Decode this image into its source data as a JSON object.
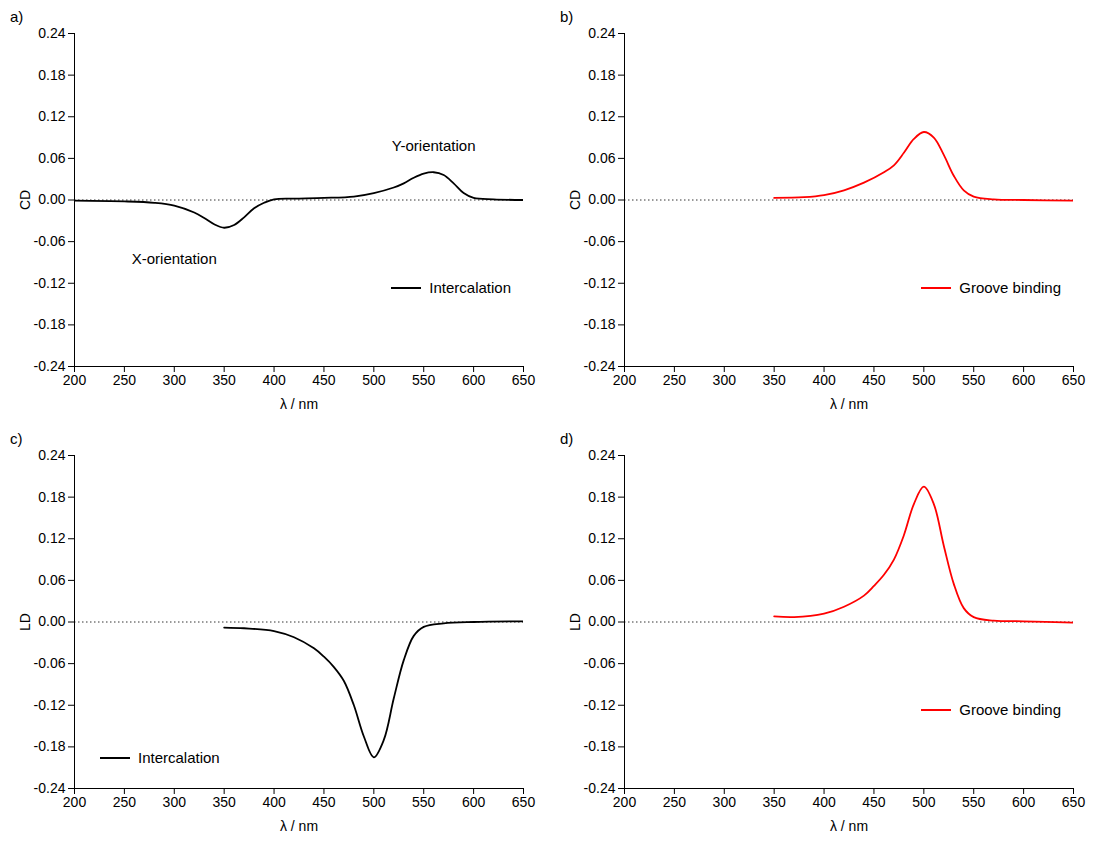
{
  "chart_data": [
    {
      "type": "line",
      "title": "a)",
      "x_label": "λ / nm",
      "y_label": "CD",
      "x": [
        200,
        250,
        280,
        300,
        320,
        330,
        340,
        350,
        360,
        370,
        380,
        390,
        400,
        420,
        450,
        480,
        500,
        520,
        530,
        540,
        550,
        560,
        570,
        580,
        590,
        600,
        620,
        650
      ],
      "series": [
        {
          "name": "Intercalation",
          "color": "#000000",
          "values": [
            -0.001,
            -0.002,
            -0.004,
            -0.008,
            -0.018,
            -0.026,
            -0.035,
            -0.04,
            -0.036,
            -0.025,
            -0.012,
            -0.004,
            0.001,
            0.002,
            0.003,
            0.005,
            0.01,
            0.018,
            0.024,
            0.032,
            0.038,
            0.04,
            0.036,
            0.024,
            0.01,
            0.003,
            0.001,
            0
          ]
        }
      ],
      "annotations": [
        {
          "text": "X-orientation",
          "x": 300,
          "y": -0.085
        },
        {
          "text": "Y-orientation",
          "x": 560,
          "y": 0.078
        }
      ],
      "reference_line": {
        "y": 0,
        "line_style": "dotted"
      },
      "xlim": [
        200,
        650
      ],
      "ylim": [
        -0.24,
        0.24
      ],
      "xticks": [
        200,
        250,
        300,
        350,
        400,
        450,
        500,
        550,
        600,
        650
      ],
      "yticks": [
        -0.24,
        -0.18,
        -0.12,
        -0.06,
        {
          "value": 0,
          "label": "0.00"
        },
        0.06,
        0.12,
        0.18,
        0.24
      ],
      "grid": false,
      "legend": "lower right"
    },
    {
      "type": "line",
      "title": "b)",
      "x_label": "λ / nm",
      "y_label": "CD",
      "x": [
        350,
        380,
        400,
        420,
        440,
        460,
        470,
        480,
        490,
        500,
        510,
        520,
        530,
        540,
        550,
        570,
        600,
        650
      ],
      "series": [
        {
          "name": "Groove binding",
          "color": "#ff0000",
          "values": [
            0.003,
            0.004,
            0.007,
            0.014,
            0.025,
            0.04,
            0.05,
            0.068,
            0.088,
            0.098,
            0.09,
            0.065,
            0.035,
            0.014,
            0.005,
            0.001,
            0,
            -0.001
          ]
        }
      ],
      "annotations": [],
      "reference_line": {
        "y": 0,
        "line_style": "dotted"
      },
      "xlim": [
        200,
        650
      ],
      "ylim": [
        -0.24,
        0.24
      ],
      "xticks": [
        200,
        250,
        300,
        350,
        400,
        450,
        500,
        550,
        600,
        650
      ],
      "yticks": [
        -0.24,
        -0.18,
        -0.12,
        -0.06,
        {
          "value": 0,
          "label": "0.00"
        },
        0.06,
        0.12,
        0.18,
        0.24
      ],
      "grid": false,
      "legend": "lower right"
    },
    {
      "type": "line",
      "title": "c)",
      "x_label": "λ / nm",
      "y_label": "LD",
      "x": [
        350,
        370,
        400,
        420,
        440,
        450,
        460,
        470,
        480,
        490,
        500,
        510,
        520,
        530,
        540,
        550,
        570,
        600,
        650
      ],
      "series": [
        {
          "name": "Intercalation",
          "color": "#000000",
          "values": [
            -0.008,
            -0.009,
            -0.013,
            -0.022,
            -0.038,
            -0.05,
            -0.065,
            -0.085,
            -0.12,
            -0.165,
            -0.195,
            -0.17,
            -0.11,
            -0.055,
            -0.02,
            -0.007,
            -0.002,
            0,
            0.001
          ]
        }
      ],
      "annotations": [],
      "reference_line": {
        "y": 0,
        "line_style": "dotted"
      },
      "xlim": [
        200,
        650
      ],
      "ylim": [
        -0.24,
        0.24
      ],
      "xticks": [
        200,
        250,
        300,
        350,
        400,
        450,
        500,
        550,
        600,
        650
      ],
      "yticks": [
        -0.24,
        -0.18,
        -0.12,
        -0.06,
        {
          "value": 0,
          "label": "0.00"
        },
        0.06,
        0.12,
        0.18,
        0.24
      ],
      "grid": false,
      "legend": "lower left"
    },
    {
      "type": "line",
      "title": "d)",
      "x_label": "λ / nm",
      "y_label": "LD",
      "x": [
        350,
        370,
        400,
        420,
        440,
        450,
        460,
        470,
        480,
        490,
        500,
        510,
        520,
        530,
        540,
        550,
        570,
        600,
        650
      ],
      "series": [
        {
          "name": "Groove binding",
          "color": "#ff0000",
          "values": [
            0.008,
            0.007,
            0.012,
            0.022,
            0.038,
            0.052,
            0.068,
            0.09,
            0.125,
            0.17,
            0.195,
            0.17,
            0.11,
            0.055,
            0.02,
            0.007,
            0.002,
            0.001,
            -0.001
          ]
        }
      ],
      "annotations": [],
      "reference_line": {
        "y": 0,
        "line_style": "dotted"
      },
      "xlim": [
        200,
        650
      ],
      "ylim": [
        -0.24,
        0.24
      ],
      "xticks": [
        200,
        250,
        300,
        350,
        400,
        450,
        500,
        550,
        600,
        650
      ],
      "yticks": [
        -0.24,
        -0.18,
        -0.12,
        -0.06,
        {
          "value": 0,
          "label": "0.00"
        },
        0.06,
        0.12,
        0.18,
        0.24
      ],
      "grid": false,
      "legend": "lower right"
    }
  ]
}
